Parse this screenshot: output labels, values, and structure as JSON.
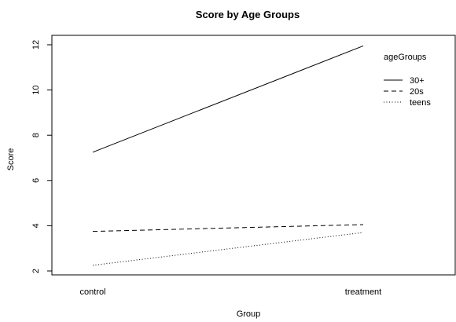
{
  "chart_data": {
    "type": "line",
    "title": "Score by Age Groups",
    "xlabel": "Group",
    "ylabel": "Score",
    "categories": [
      "control",
      "treatment"
    ],
    "ylim": [
      2,
      12
    ],
    "yticks": [
      "2",
      "4",
      "6",
      "8",
      "10",
      "12"
    ],
    "grid": false,
    "legend": {
      "title": "ageGroups",
      "placement": "top-right"
    },
    "series": [
      {
        "name": "30+",
        "values": [
          7.25,
          11.95
        ],
        "line_style": "solid"
      },
      {
        "name": "20s",
        "values": [
          3.75,
          4.05
        ],
        "line_style": "dashed"
      },
      {
        "name": "teens",
        "values": [
          2.25,
          3.7
        ],
        "line_style": "dotted"
      }
    ],
    "colors": {
      "line": "#000000",
      "background": "#ffffff"
    }
  }
}
